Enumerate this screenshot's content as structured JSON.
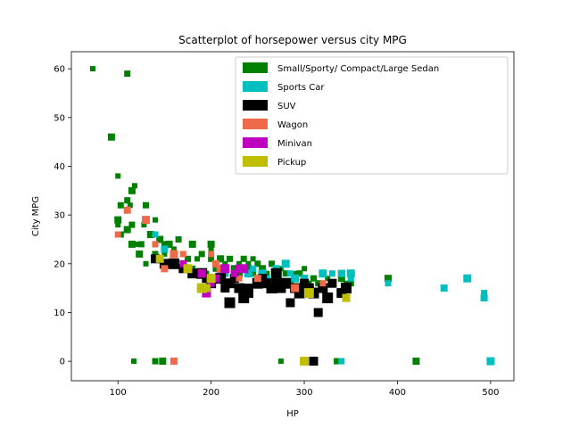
{
  "chart_data": {
    "type": "scatter",
    "title": "Scatterplot of horsepower versus city MPG",
    "xlabel": "HP",
    "ylabel": "City MPG",
    "xlim": [
      50,
      525
    ],
    "ylim": [
      -4,
      63.5
    ],
    "xticks": [
      100,
      200,
      300,
      400,
      500
    ],
    "yticks": [
      0,
      10,
      20,
      30,
      40,
      50,
      60
    ],
    "grid": false,
    "legend_position": "upper right",
    "series": [
      {
        "name": "Small/Sporty/ Compact/Large Sedan",
        "color": "#008000",
        "points": [
          [
            73,
            60
          ],
          [
            110,
            59
          ],
          [
            93,
            46
          ],
          [
            100,
            38
          ],
          [
            103,
            32
          ],
          [
            115,
            35
          ],
          [
            118,
            36
          ],
          [
            110,
            33
          ],
          [
            100,
            29
          ],
          [
            100,
            28
          ],
          [
            103,
            26
          ],
          [
            110,
            27
          ],
          [
            113,
            32
          ],
          [
            115,
            28
          ],
          [
            115,
            24
          ],
          [
            120,
            24
          ],
          [
            125,
            24
          ],
          [
            123,
            22
          ],
          [
            128,
            28
          ],
          [
            130,
            32
          ],
          [
            135,
            26
          ],
          [
            140,
            29
          ],
          [
            140,
            22
          ],
          [
            145,
            25
          ],
          [
            150,
            22
          ],
          [
            150,
            24
          ],
          [
            155,
            24
          ],
          [
            160,
            23
          ],
          [
            165,
            25
          ],
          [
            160,
            20
          ],
          [
            170,
            22
          ],
          [
            175,
            21
          ],
          [
            180,
            24
          ],
          [
            185,
            21
          ],
          [
            190,
            22
          ],
          [
            200,
            24
          ],
          [
            200,
            23
          ],
          [
            200,
            21
          ],
          [
            210,
            21
          ],
          [
            215,
            20
          ],
          [
            220,
            21
          ],
          [
            225,
            19
          ],
          [
            230,
            20
          ],
          [
            235,
            21
          ],
          [
            240,
            19
          ],
          [
            245,
            21
          ],
          [
            250,
            20
          ],
          [
            255,
            19
          ],
          [
            260,
            18
          ],
          [
            265,
            20
          ],
          [
            270,
            17
          ],
          [
            275,
            19
          ],
          [
            280,
            18
          ],
          [
            285,
            16
          ],
          [
            290,
            18
          ],
          [
            295,
            18
          ],
          [
            300,
            17
          ],
          [
            305,
            16
          ],
          [
            310,
            17
          ],
          [
            320,
            18
          ],
          [
            325,
            17
          ],
          [
            330,
            16
          ],
          [
            340,
            17
          ],
          [
            345,
            16
          ],
          [
            350,
            16
          ],
          [
            390,
            17
          ],
          [
            117,
            0
          ],
          [
            140,
            0
          ],
          [
            148,
            0
          ],
          [
            275,
            0
          ],
          [
            335,
            0
          ],
          [
            420,
            0
          ],
          [
            195,
            18
          ],
          [
            205,
            19
          ],
          [
            185,
            18
          ],
          [
            175,
            19
          ],
          [
            215,
            18
          ],
          [
            225,
            17
          ],
          [
            250,
            17
          ],
          [
            150,
            20
          ],
          [
            160,
            22
          ],
          [
            170,
            20
          ],
          [
            180,
            19
          ],
          [
            230,
            18
          ],
          [
            240,
            20
          ],
          [
            245,
            18
          ],
          [
            290,
            17
          ],
          [
            300,
            19
          ],
          [
            315,
            16
          ],
          [
            340,
            18
          ],
          [
            130,
            20
          ],
          [
            140,
            24
          ],
          [
            180,
            18
          ]
        ]
      },
      {
        "name": "Sports Car",
        "color": "#00BFBF",
        "points": [
          [
            140,
            26
          ],
          [
            150,
            23
          ],
          [
            200,
            17
          ],
          [
            210,
            18
          ],
          [
            215,
            18
          ],
          [
            240,
            18
          ],
          [
            245,
            19
          ],
          [
            250,
            17
          ],
          [
            255,
            18
          ],
          [
            260,
            17
          ],
          [
            270,
            19
          ],
          [
            280,
            20
          ],
          [
            285,
            18
          ],
          [
            300,
            17
          ],
          [
            320,
            18
          ],
          [
            330,
            18
          ],
          [
            340,
            18
          ],
          [
            350,
            18
          ],
          [
            390,
            16
          ],
          [
            450,
            15
          ],
          [
            475,
            17
          ],
          [
            493,
            14
          ],
          [
            493,
            13
          ],
          [
            500,
            0
          ],
          [
            340,
            0
          ],
          [
            310,
            0
          ],
          [
            290,
            17
          ],
          [
            350,
            17
          ]
        ]
      },
      {
        "name": "SUV",
        "color": "#000000",
        "points": [
          [
            140,
            21
          ],
          [
            150,
            20
          ],
          [
            160,
            20
          ],
          [
            170,
            19
          ],
          [
            180,
            18
          ],
          [
            190,
            18
          ],
          [
            195,
            17
          ],
          [
            200,
            16
          ],
          [
            210,
            17
          ],
          [
            215,
            15
          ],
          [
            220,
            16
          ],
          [
            220,
            12
          ],
          [
            225,
            17
          ],
          [
            230,
            15
          ],
          [
            235,
            13
          ],
          [
            240,
            15
          ],
          [
            240,
            14
          ],
          [
            250,
            16
          ],
          [
            255,
            17
          ],
          [
            260,
            16
          ],
          [
            265,
            15
          ],
          [
            270,
            16
          ],
          [
            275,
            15
          ],
          [
            280,
            16
          ],
          [
            285,
            12
          ],
          [
            290,
            15
          ],
          [
            295,
            14
          ],
          [
            300,
            16
          ],
          [
            305,
            15
          ],
          [
            310,
            14
          ],
          [
            315,
            10
          ],
          [
            320,
            15
          ],
          [
            325,
            13
          ],
          [
            330,
            16
          ],
          [
            340,
            14
          ],
          [
            345,
            15
          ],
          [
            310,
            0
          ],
          [
            300,
            15
          ],
          [
            270,
            18
          ]
        ]
      },
      {
        "name": "Wagon",
        "color": "#EF6A48",
        "points": [
          [
            100,
            26
          ],
          [
            110,
            31
          ],
          [
            130,
            29
          ],
          [
            140,
            24
          ],
          [
            150,
            19
          ],
          [
            160,
            22
          ],
          [
            170,
            22
          ],
          [
            175,
            19
          ],
          [
            190,
            18
          ],
          [
            200,
            22
          ],
          [
            205,
            20
          ],
          [
            210,
            19
          ],
          [
            230,
            17
          ],
          [
            250,
            17
          ],
          [
            290,
            15
          ],
          [
            320,
            16
          ],
          [
            160,
            0
          ]
        ]
      },
      {
        "name": "Minivan",
        "color": "#BF00BF",
        "points": [
          [
            170,
            20
          ],
          [
            190,
            18
          ],
          [
            195,
            14
          ],
          [
            200,
            16
          ],
          [
            205,
            17
          ],
          [
            215,
            19
          ],
          [
            225,
            18
          ],
          [
            230,
            19
          ],
          [
            235,
            19
          ]
        ]
      },
      {
        "name": "Pickup",
        "color": "#BFBF00",
        "points": [
          [
            145,
            21
          ],
          [
            175,
            19
          ],
          [
            190,
            15
          ],
          [
            195,
            15
          ],
          [
            200,
            17
          ],
          [
            305,
            14
          ],
          [
            345,
            13
          ],
          [
            300,
            0
          ]
        ]
      }
    ]
  }
}
